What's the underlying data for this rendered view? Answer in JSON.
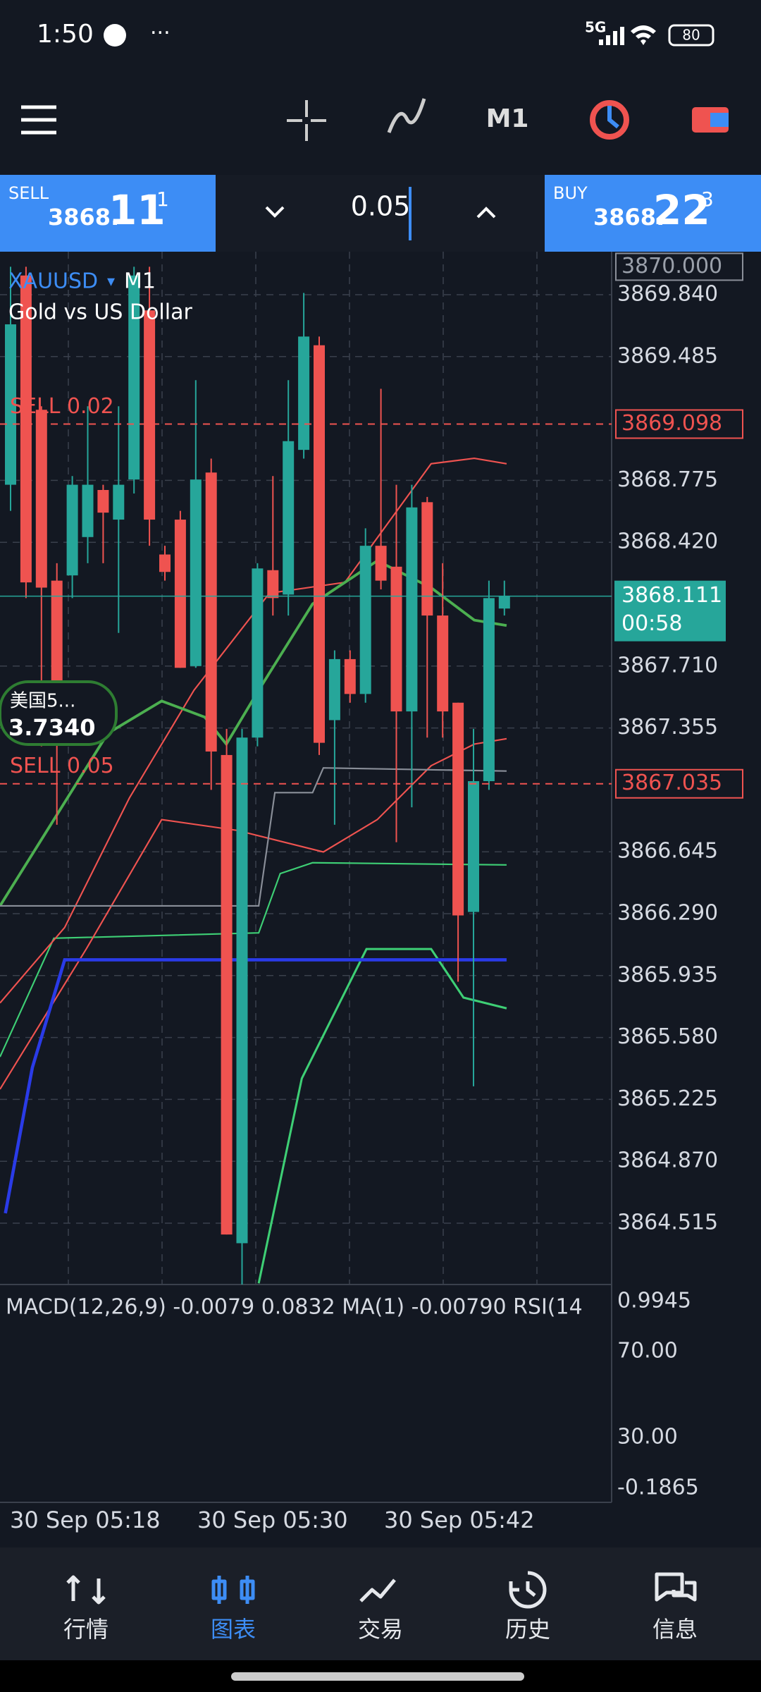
{
  "status": {
    "time": "1:50",
    "network": "5G",
    "battery": "80"
  },
  "toolbar": {
    "timeframe": "M1"
  },
  "trade_bar": {
    "sell": {
      "label": "SELL",
      "price_small": "3868.",
      "price_big": "11",
      "price_sup": "1"
    },
    "lot": "0.05",
    "buy": {
      "label": "BUY",
      "price_small": "3868.",
      "price_big": "22",
      "price_sup": "3"
    }
  },
  "chart": {
    "symbol": "XAUUSD",
    "timeframe": "M1",
    "description": "Gold vs US Dollar",
    "yticks": [
      {
        "value": 3869.84,
        "label": "3869.840"
      },
      {
        "value": 3869.485,
        "label": "3869.485"
      },
      {
        "value": 3868.775,
        "label": "3868.775"
      },
      {
        "value": 3868.42,
        "label": "3868.420"
      },
      {
        "value": 3867.71,
        "label": "3867.710"
      },
      {
        "value": 3867.355,
        "label": "3867.355"
      },
      {
        "value": 3866.645,
        "label": "3866.645"
      },
      {
        "value": 3866.29,
        "label": "3866.290"
      },
      {
        "value": 3865.935,
        "label": "3865.935"
      },
      {
        "value": 3865.58,
        "label": "3865.580"
      },
      {
        "value": 3865.225,
        "label": "3865.225"
      },
      {
        "value": 3864.87,
        "label": "3864.870"
      },
      {
        "value": 3864.515,
        "label": "3864.515"
      }
    ],
    "top_label": {
      "value": 3870,
      "label": "3870.000"
    },
    "orders": [
      {
        "label": "SELL 0.02",
        "price": {
          "value": 3869.098,
          "label": "3869.098"
        }
      },
      {
        "label": "SELL 0.05",
        "price": {
          "value": 3867.035,
          "label": "3867.035"
        }
      }
    ],
    "current": {
      "price": {
        "value": 3868.111,
        "label": "3868.111"
      },
      "countdown": "00:58"
    },
    "badge": {
      "name": "美国5...",
      "value": "3.7340"
    },
    "candles": [
      [
        3868.75,
        3870.0,
        3868.6,
        3869.67
      ],
      [
        3869.95,
        3870.0,
        3868.1,
        3868.19
      ],
      [
        3869.18,
        3869.2,
        3867.25,
        3868.16
      ],
      [
        3868.2,
        3868.3,
        3866.8,
        3867.6
      ],
      [
        3868.23,
        3868.8,
        3868.1,
        3868.75
      ],
      [
        3868.45,
        3869.2,
        3868.3,
        3868.75
      ],
      [
        3868.72,
        3868.75,
        3868.3,
        3868.59
      ],
      [
        3868.55,
        3869.2,
        3867.9,
        3868.75
      ],
      [
        3868.78,
        3870.0,
        3868.7,
        3869.95
      ],
      [
        3869.75,
        3870.0,
        3868.4,
        3868.55
      ],
      [
        3868.35,
        3868.4,
        3868.2,
        3868.25
      ],
      [
        3868.55,
        3868.6,
        3867.7,
        3867.7
      ],
      [
        3867.71,
        3869.35,
        3867.7,
        3868.78
      ],
      [
        3868.82,
        3868.9,
        3867.0,
        3867.22
      ],
      [
        3867.2,
        3867.35,
        3864.45,
        3864.45
      ],
      [
        3864.4,
        3867.35,
        3864.1,
        3867.3
      ],
      [
        3867.3,
        3868.3,
        3867.25,
        3868.27
      ],
      [
        3868.26,
        3868.8,
        3868.0,
        3868.1
      ],
      [
        3868.12,
        3869.35,
        3868.0,
        3869.0
      ],
      [
        3868.95,
        3869.85,
        3868.9,
        3869.6
      ],
      [
        3869.55,
        3869.6,
        3867.2,
        3867.27
      ],
      [
        3867.4,
        3867.8,
        3866.8,
        3867.75
      ],
      [
        3867.75,
        3867.8,
        3867.5,
        3867.55
      ],
      [
        3867.55,
        3868.5,
        3867.5,
        3868.4
      ],
      [
        3868.4,
        3869.3,
        3868.15,
        3868.2
      ],
      [
        3868.28,
        3868.75,
        3866.7,
        3867.45
      ],
      [
        3867.45,
        3868.75,
        3866.9,
        3868.62
      ],
      [
        3868.65,
        3868.68,
        3867.3,
        3868.0
      ],
      [
        3868.0,
        3868.3,
        3867.3,
        3867.45
      ],
      [
        3867.5,
        3867.5,
        3865.9,
        3866.28
      ],
      [
        3866.3,
        3867.35,
        3865.3,
        3867.05
      ],
      [
        3867.05,
        3868.2,
        3867.0,
        3868.1
      ],
      [
        3868.04,
        3868.2,
        3868.0,
        3868.11
      ]
    ],
    "up_color": "#26a69a",
    "down_color": "#ef5350"
  },
  "indicator": {
    "caption": "MACD(12,26,9) -0.0079 0.0832 MA(1) -0.00790 RSI(14",
    "levels": [
      "0.9945",
      "70.00",
      "30.00",
      "-0.1865"
    ]
  },
  "time_axis": [
    "30 Sep 05:18",
    "30 Sep 05:30",
    "30 Sep 05:42"
  ],
  "nav": [
    {
      "label": "行情"
    },
    {
      "label": "图表",
      "active": true
    },
    {
      "label": "交易"
    },
    {
      "label": "历史"
    },
    {
      "label": "信息"
    }
  ]
}
